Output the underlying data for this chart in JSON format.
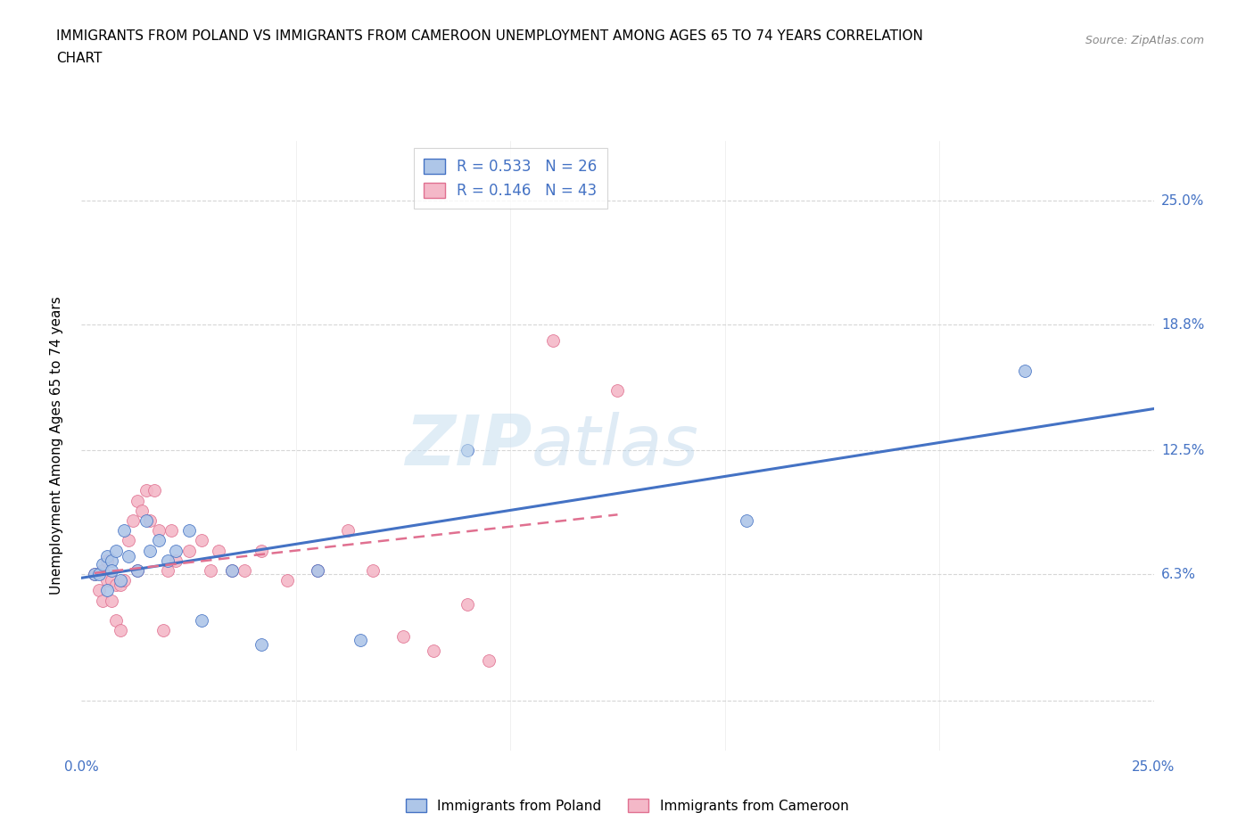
{
  "title_line1": "IMMIGRANTS FROM POLAND VS IMMIGRANTS FROM CAMEROON UNEMPLOYMENT AMONG AGES 65 TO 74 YEARS CORRELATION",
  "title_line2": "CHART",
  "source_text": "Source: ZipAtlas.com",
  "ylabel": "Unemployment Among Ages 65 to 74 years",
  "xlim": [
    0.0,
    0.25
  ],
  "ylim": [
    -0.025,
    0.28
  ],
  "poland_color": "#aec6e8",
  "cameroon_color": "#f4b8c8",
  "poland_line_color": "#4472c4",
  "cameroon_line_color": "#e07090",
  "poland_R": 0.533,
  "poland_N": 26,
  "cameroon_R": 0.146,
  "cameroon_N": 43,
  "legend_text_color": "#4472c4",
  "poland_scatter_x": [
    0.003,
    0.004,
    0.005,
    0.006,
    0.006,
    0.007,
    0.007,
    0.008,
    0.009,
    0.01,
    0.011,
    0.013,
    0.015,
    0.016,
    0.018,
    0.02,
    0.022,
    0.025,
    0.028,
    0.035,
    0.042,
    0.055,
    0.065,
    0.09,
    0.155,
    0.22
  ],
  "poland_scatter_y": [
    0.063,
    0.063,
    0.068,
    0.072,
    0.055,
    0.07,
    0.065,
    0.075,
    0.06,
    0.085,
    0.072,
    0.065,
    0.09,
    0.075,
    0.08,
    0.07,
    0.075,
    0.085,
    0.04,
    0.065,
    0.028,
    0.065,
    0.03,
    0.125,
    0.09,
    0.165
  ],
  "cameroon_scatter_x": [
    0.003,
    0.004,
    0.005,
    0.005,
    0.006,
    0.006,
    0.007,
    0.007,
    0.008,
    0.008,
    0.009,
    0.009,
    0.01,
    0.011,
    0.012,
    0.013,
    0.013,
    0.014,
    0.015,
    0.016,
    0.017,
    0.018,
    0.019,
    0.02,
    0.021,
    0.022,
    0.025,
    0.028,
    0.03,
    0.032,
    0.035,
    0.038,
    0.042,
    0.048,
    0.055,
    0.062,
    0.068,
    0.075,
    0.082,
    0.09,
    0.095,
    0.11,
    0.125
  ],
  "cameroon_scatter_y": [
    0.063,
    0.055,
    0.065,
    0.05,
    0.07,
    0.06,
    0.06,
    0.05,
    0.058,
    0.04,
    0.058,
    0.035,
    0.06,
    0.08,
    0.09,
    0.1,
    0.065,
    0.095,
    0.105,
    0.09,
    0.105,
    0.085,
    0.035,
    0.065,
    0.085,
    0.07,
    0.075,
    0.08,
    0.065,
    0.075,
    0.065,
    0.065,
    0.075,
    0.06,
    0.065,
    0.085,
    0.065,
    0.032,
    0.025,
    0.048,
    0.02,
    0.18,
    0.155
  ],
  "grid_color": "#cccccc",
  "background_color": "#ffffff",
  "fig_bg_color": "#ffffff",
  "ytick_positions": [
    0.0,
    0.063,
    0.125,
    0.188,
    0.25
  ],
  "ytick_labels_right": [
    "",
    "6.3%",
    "12.5%",
    "18.8%",
    "25.0%"
  ],
  "xtick_positions": [
    0.0,
    0.25
  ],
  "xtick_labels": [
    "0.0%",
    "25.0%"
  ]
}
